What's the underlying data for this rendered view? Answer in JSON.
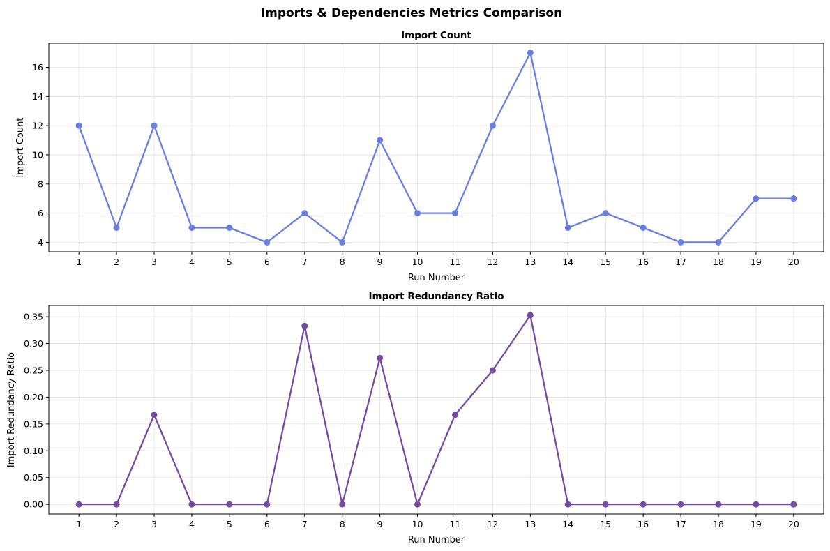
{
  "figure": {
    "title": "Imports & Dependencies Metrics Comparison"
  },
  "chart_data": [
    {
      "type": "line",
      "title": "Import Count",
      "xlabel": "Run Number",
      "ylabel": "Import Count",
      "x": [
        1,
        2,
        3,
        4,
        5,
        6,
        7,
        8,
        9,
        10,
        11,
        12,
        13,
        14,
        15,
        16,
        17,
        18,
        19,
        20
      ],
      "xlim": [
        0.2,
        20.8
      ],
      "ylim": [
        3.35,
        17.65
      ],
      "yticks": [
        4,
        6,
        8,
        10,
        12,
        14,
        16
      ],
      "ytick_labels": [
        "4",
        "6",
        "8",
        "10",
        "12",
        "14",
        "16"
      ],
      "grid": true,
      "series": [
        {
          "color": "#6A7FE0",
          "marker": "circle",
          "values": [
            12,
            5,
            12,
            5,
            5,
            4,
            6,
            4,
            11,
            6,
            6,
            12,
            17,
            5,
            6,
            5,
            4,
            4,
            7,
            7
          ]
        }
      ]
    },
    {
      "type": "line",
      "title": "Import Redundancy Ratio",
      "xlabel": "Run Number",
      "ylabel": "Import Redundancy Ratio",
      "x": [
        1,
        2,
        3,
        4,
        5,
        6,
        7,
        8,
        9,
        10,
        11,
        12,
        13,
        14,
        15,
        16,
        17,
        18,
        19,
        20
      ],
      "xlim": [
        0.2,
        20.8
      ],
      "ylim": [
        -0.018,
        0.371
      ],
      "yticks": [
        0,
        0.05,
        0.1,
        0.15,
        0.2,
        0.25,
        0.3,
        0.35
      ],
      "ytick_labels": [
        "0.00",
        "0.05",
        "0.10",
        "0.15",
        "0.20",
        "0.25",
        "0.30",
        "0.35"
      ],
      "grid": true,
      "series": [
        {
          "color": "#764BA2",
          "marker": "circle",
          "values": [
            0,
            0,
            0.167,
            0,
            0,
            0,
            0.333,
            0,
            0.273,
            0,
            0.167,
            0.25,
            0.353,
            0,
            0,
            0,
            0,
            0,
            0,
            0
          ]
        }
      ]
    }
  ]
}
